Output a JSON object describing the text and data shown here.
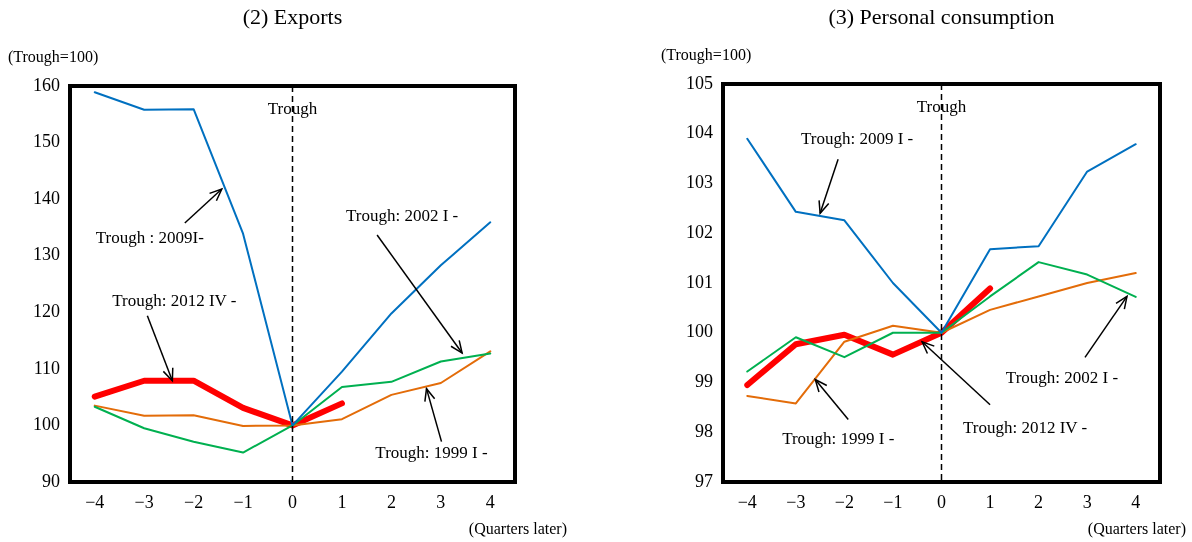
{
  "chart_data": [
    {
      "type": "line",
      "title": "(2) Exports",
      "ylabel": "(Trough=100)",
      "xlabel": "(Quarters later)",
      "x": [
        -4,
        -3,
        -2,
        -1,
        0,
        1,
        2,
        3,
        4
      ],
      "series": [
        {
          "color": "#0070c0",
          "values": [
            158.9,
            155.8,
            155.9,
            133.9,
            100,
            109.5,
            119.8,
            128.3,
            135.9
          ]
        },
        {
          "color": "#00b050",
          "values": [
            103.3,
            99.5,
            97.1,
            95.2,
            100,
            106.8,
            107.7,
            111.3,
            112.7
          ]
        },
        {
          "color": "#e36c09",
          "values": [
            103.5,
            101.7,
            101.8,
            99.9,
            100,
            101.1,
            105.4,
            107.5,
            113.1
          ]
        },
        {
          "color": "#ff0000",
          "values": [
            105.1,
            107.9,
            107.9,
            103.1,
            100,
            103.9,
            null,
            null,
            null
          ]
        }
      ],
      "xlim": [
        -4.5,
        4.5
      ],
      "xticks": [
        {
          "value": -4,
          "label": "−4"
        },
        {
          "value": -3,
          "label": "−3"
        },
        {
          "value": -2,
          "label": "−2"
        },
        {
          "value": -1,
          "label": "−1"
        },
        0,
        1,
        2,
        3,
        4
      ],
      "ylim": [
        90,
        160
      ],
      "yticks": [
        90,
        100,
        110,
        120,
        130,
        140,
        150,
        160
      ],
      "ref_lines": [
        {
          "axis": "x",
          "value": 0,
          "label": "Trough",
          "line_style": "dashed"
        }
      ],
      "annotations": [
        {
          "text": "Trough : 2009I-",
          "x": -1.43,
          "y": 141.8
        },
        {
          "text": "Trough: 2012 IV -",
          "x": -2.43,
          "y": 107.9
        },
        {
          "text": "Trough: 2002 I -",
          "x": 3.43,
          "y": 112.8
        },
        {
          "text": "Trough: 1999 I -",
          "x": 2.71,
          "y": 106.5
        }
      ],
      "grid": false,
      "legend": false,
      "marker": "none",
      "line_style": "solid"
    },
    {
      "type": "line",
      "title": "(3) Personal consumption",
      "ylabel": "(Trough=100)",
      "xlabel": "(Quarters later)",
      "x": [
        -4,
        -3,
        -2,
        -1,
        0,
        1,
        2,
        3,
        4
      ],
      "series": [
        {
          "color": "#0070c0",
          "values": [
            103.9,
            102.43,
            102.26,
            101.0,
            100,
            101.68,
            101.74,
            103.24,
            103.79
          ]
        },
        {
          "color": "#00b050",
          "values": [
            99.22,
            99.91,
            99.51,
            100.0,
            100,
            100.73,
            101.42,
            101.17,
            100.72
          ]
        },
        {
          "color": "#e36c09",
          "values": [
            98.73,
            98.58,
            99.82,
            100.14,
            100,
            100.46,
            100.73,
            101.0,
            101.2
          ]
        },
        {
          "color": "#ff0000",
          "values": [
            98.95,
            99.77,
            99.96,
            99.56,
            100,
            100.89,
            null,
            null,
            null
          ]
        }
      ],
      "xlim": [
        -4.5,
        4.5
      ],
      "xticks": [
        {
          "value": -4,
          "label": "−4"
        },
        {
          "value": -3,
          "label": "−3"
        },
        {
          "value": -2,
          "label": "−2"
        },
        {
          "value": -1,
          "label": "−1"
        },
        0,
        1,
        2,
        3,
        4
      ],
      "ylim": [
        97,
        105
      ],
      "yticks": [
        97,
        98,
        99,
        100,
        101,
        102,
        103,
        104,
        105
      ],
      "ref_lines": [
        {
          "axis": "x",
          "value": 0,
          "label": "Trough",
          "line_style": "dashed"
        }
      ],
      "annotations": [
        {
          "text": "Trough: 2009 I -",
          "x": -2.5,
          "y": 102.4
        },
        {
          "text": "Trough: 1999 I -",
          "x": -2.6,
          "y": 99.06
        },
        {
          "text": "Trough: 2012 IV -",
          "x": -0.4,
          "y": 99.82
        },
        {
          "text": "Trough: 2002 I -",
          "x": 3.82,
          "y": 100.73
        }
      ],
      "grid": false,
      "legend": false,
      "marker": "none",
      "line_style": "solid"
    }
  ]
}
